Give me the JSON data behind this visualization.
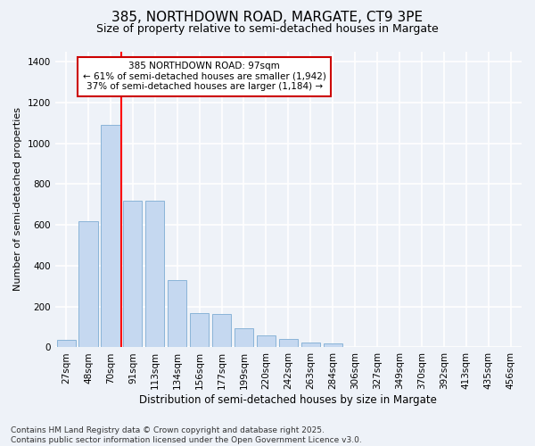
{
  "title1": "385, NORTHDOWN ROAD, MARGATE, CT9 3PE",
  "title2": "Size of property relative to semi-detached houses in Margate",
  "xlabel": "Distribution of semi-detached houses by size in Margate",
  "ylabel": "Number of semi-detached properties",
  "categories": [
    "27sqm",
    "48sqm",
    "70sqm",
    "91sqm",
    "113sqm",
    "134sqm",
    "156sqm",
    "177sqm",
    "199sqm",
    "220sqm",
    "242sqm",
    "263sqm",
    "284sqm",
    "306sqm",
    "327sqm",
    "349sqm",
    "370sqm",
    "392sqm",
    "413sqm",
    "435sqm",
    "456sqm"
  ],
  "values": [
    35,
    620,
    1090,
    720,
    720,
    330,
    170,
    165,
    95,
    60,
    40,
    25,
    20,
    0,
    0,
    0,
    0,
    0,
    0,
    0,
    0
  ],
  "bar_color": "#c5d8f0",
  "bar_edge_color": "#8ab4d8",
  "vline_index": 3,
  "annotation_title": "385 NORTHDOWN ROAD: 97sqm",
  "annotation_line1": "← 61% of semi-detached houses are smaller (1,942)",
  "annotation_line2": "37% of semi-detached houses are larger (1,184) →",
  "annotation_box_color": "#ffffff",
  "annotation_box_edge": "#cc0000",
  "footer1": "Contains HM Land Registry data © Crown copyright and database right 2025.",
  "footer2": "Contains public sector information licensed under the Open Government Licence v3.0.",
  "ylim": [
    0,
    1450
  ],
  "yticks": [
    0,
    200,
    400,
    600,
    800,
    1000,
    1200,
    1400
  ],
  "bg_color": "#eef2f8",
  "grid_color": "#ffffff",
  "title1_fontsize": 11,
  "title2_fontsize": 9,
  "ylabel_fontsize": 8,
  "xlabel_fontsize": 8.5,
  "tick_fontsize": 7.5,
  "ann_fontsize": 7.5,
  "footer_fontsize": 6.5
}
